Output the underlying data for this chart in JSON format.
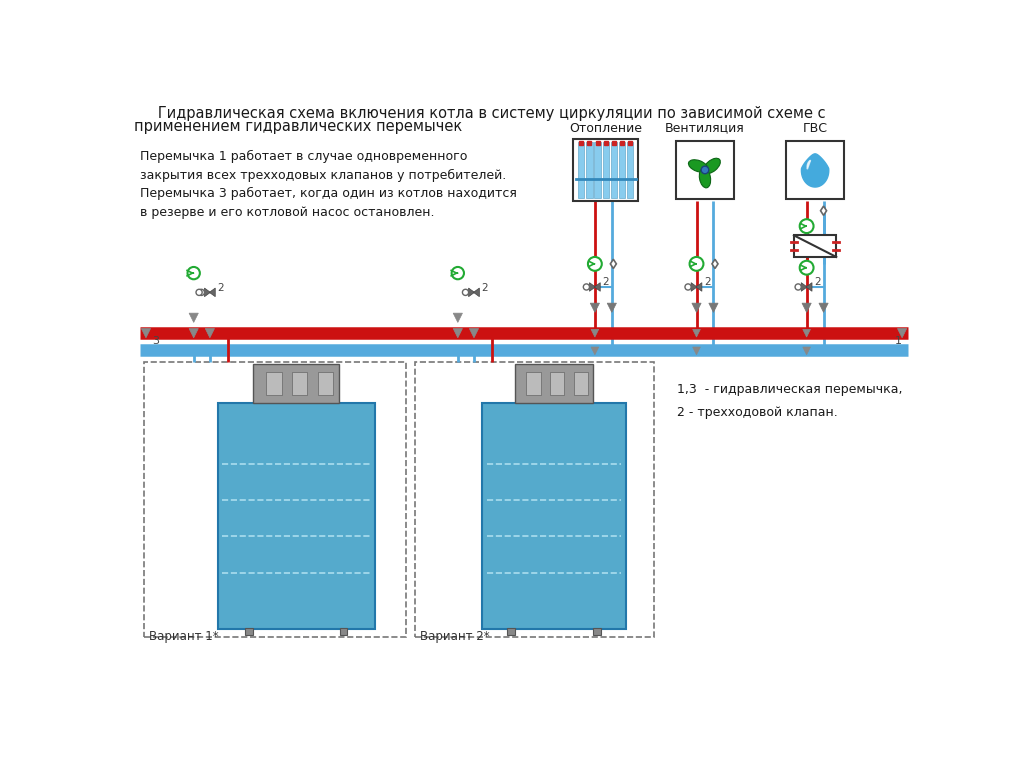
{
  "title_line1": "   Гидравлическая схема включения котла в систему циркуляции по зависимой схеме с",
  "title_line2": "применением гидравлических перемычек",
  "note_text": "Перемычка 1 работает в случае одновременного\nзакрытия всех трехходовых клапанов у потребителей.\nПеремычка 3 работает, когда один из котлов находится\nв резерве и его котловой насос остановлен.",
  "legend_text": "1,3  - гидравлическая перемычка,\n2 - трехходовой клапан.",
  "label_oton": "Отопление",
  "label_vent": "Вентиляция",
  "label_gvs": "ГВС",
  "label_var1": "Вариант 1*",
  "label_var2": "Вариант 2*",
  "bg_color": "#ffffff",
  "red_pipe": "#cc1111",
  "blue_pipe": "#55aadd",
  "light_blue_rad": "#88ccee",
  "green_pump": "#22aa33",
  "dark_text": "#1a1a1a",
  "boiler_blue": "#55aacc",
  "gray_valve": "#888888"
}
